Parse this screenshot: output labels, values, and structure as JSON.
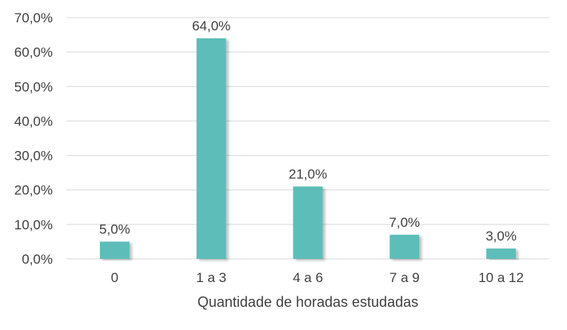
{
  "chart_data": {
    "type": "bar",
    "categories": [
      "0",
      "1 a 3",
      "4 a 6",
      "7 a 9",
      "10 a 12"
    ],
    "values": [
      5.0,
      64.0,
      21.0,
      7.0,
      3.0
    ],
    "value_labels": [
      "5,0%",
      "64,0%",
      "21,0%",
      "7,0%",
      "3,0%"
    ],
    "title": "",
    "xlabel": "Quantidade de horadas estudadas",
    "ylabel": "",
    "ylim": [
      0,
      70
    ],
    "yticks": [
      0,
      10,
      20,
      30,
      40,
      50,
      60,
      70
    ],
    "ytick_labels": [
      "0,0%",
      "10,0%",
      "20,0%",
      "30,0%",
      "40,0%",
      "50,0%",
      "60,0%",
      "70,0%"
    ],
    "grid": true,
    "legend": "none",
    "colors": {
      "bar": "#5dbdb8",
      "bar_shadow": "#c9c9c9",
      "grid": "#d9d9d9",
      "text": "#404040"
    }
  }
}
